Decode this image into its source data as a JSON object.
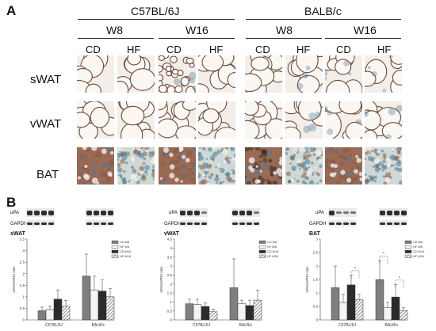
{
  "panel_a": {
    "label": "A",
    "strains": [
      "C57BL/6J",
      "BALB/c"
    ],
    "weeks": [
      "W8",
      "W16",
      "W8",
      "W16"
    ],
    "diets": [
      "CD",
      "HF",
      "CD",
      "HF",
      "CD",
      "HF",
      "CD",
      "HF"
    ],
    "tissues": [
      "sWAT",
      "vWAT",
      "BAT"
    ]
  },
  "panel_b": {
    "label": "B",
    "blot_labels": [
      "uPA",
      "GAPDH"
    ]
  },
  "chart_data": [
    {
      "type": "bar",
      "title": "sWAT",
      "ylabel": "uPA/GAPDH ratio",
      "categories": [
        "C57BL/6J",
        "BALB/c"
      ],
      "ylim": [
        0,
        3.5
      ],
      "yticks": [
        "0",
        "0.5",
        "1",
        "1.5",
        "2",
        "2.5",
        "3",
        "3.5"
      ],
      "legend_position": "top-right",
      "series": [
        {
          "name": "CD W8",
          "values": [
            0.4,
            1.9
          ],
          "errors": [
            0.15,
            0.95
          ]
        },
        {
          "name": "HF W8",
          "values": [
            0.45,
            1.3
          ],
          "errors": [
            0.15,
            0.6
          ]
        },
        {
          "name": "CD W16",
          "values": [
            0.9,
            1.25
          ],
          "errors": [
            0.4,
            0.5
          ]
        },
        {
          "name": "HF W16",
          "values": [
            0.6,
            1.0
          ],
          "errors": [
            0.25,
            0.35
          ]
        }
      ]
    },
    {
      "type": "bar",
      "title": "vWAT",
      "ylabel": "uPA/GAPDH ratio",
      "categories": [
        "C57BL/6J",
        "BALB/c"
      ],
      "ylim": [
        0,
        4.5
      ],
      "yticks": [
        "0",
        "0.5",
        "1",
        "1.5",
        "2",
        "2.5",
        "3",
        "3.5",
        "4",
        "4.5"
      ],
      "legend_position": "top-right",
      "series": [
        {
          "name": "CD W8",
          "values": [
            0.9,
            1.8
          ],
          "errors": [
            0.25,
            1.6
          ]
        },
        {
          "name": "HF W8",
          "values": [
            0.85,
            0.9
          ],
          "errors": [
            0.3,
            0.2
          ]
        },
        {
          "name": "CD W16",
          "values": [
            0.75,
            0.8
          ],
          "errors": [
            0.2,
            0.3
          ]
        },
        {
          "name": "HF W16",
          "values": [
            0.45,
            1.1
          ],
          "errors": [
            0.15,
            0.55
          ]
        }
      ]
    },
    {
      "type": "bar",
      "title": "BAT",
      "ylabel": "uPA/GAPDH ratio",
      "categories": [
        "C57BL/6J",
        "BALB/c"
      ],
      "ylim": [
        0,
        3
      ],
      "yticks": [
        "0",
        "0.5",
        "1",
        "1.5",
        "2",
        "2.5",
        "3"
      ],
      "legend_position": "top-right",
      "series": [
        {
          "name": "CD W8",
          "values": [
            1.2,
            1.5
          ],
          "errors": [
            0.8,
            0.7
          ]
        },
        {
          "name": "HF W8",
          "values": [
            0.65,
            0.45
          ],
          "errors": [
            0.3,
            0.2
          ]
        },
        {
          "name": "CD W16",
          "values": [
            1.3,
            0.85
          ],
          "errors": [
            0.35,
            0.45
          ]
        },
        {
          "name": "HF W16",
          "values": [
            0.75,
            0.35
          ],
          "errors": [
            0.2,
            0.1
          ]
        }
      ],
      "significance_brackets": [
        {
          "category": 0,
          "from": 2,
          "to": 3,
          "label": "*"
        },
        {
          "category": 1,
          "from": 0,
          "to": 1,
          "label": "*"
        },
        {
          "category": 1,
          "from": 2,
          "to": 3,
          "label": "*"
        }
      ]
    }
  ],
  "colors": {
    "cd_w8": "#7f7f7f",
    "hf_w8": "#f4f4f4",
    "cd_w16": "#2b2b2b",
    "hf_w16_hatch": "#555555",
    "wat_stain": "#6b4a3d",
    "bat_brown": "#8a5a45",
    "bat_blue": "#4a7b96"
  }
}
